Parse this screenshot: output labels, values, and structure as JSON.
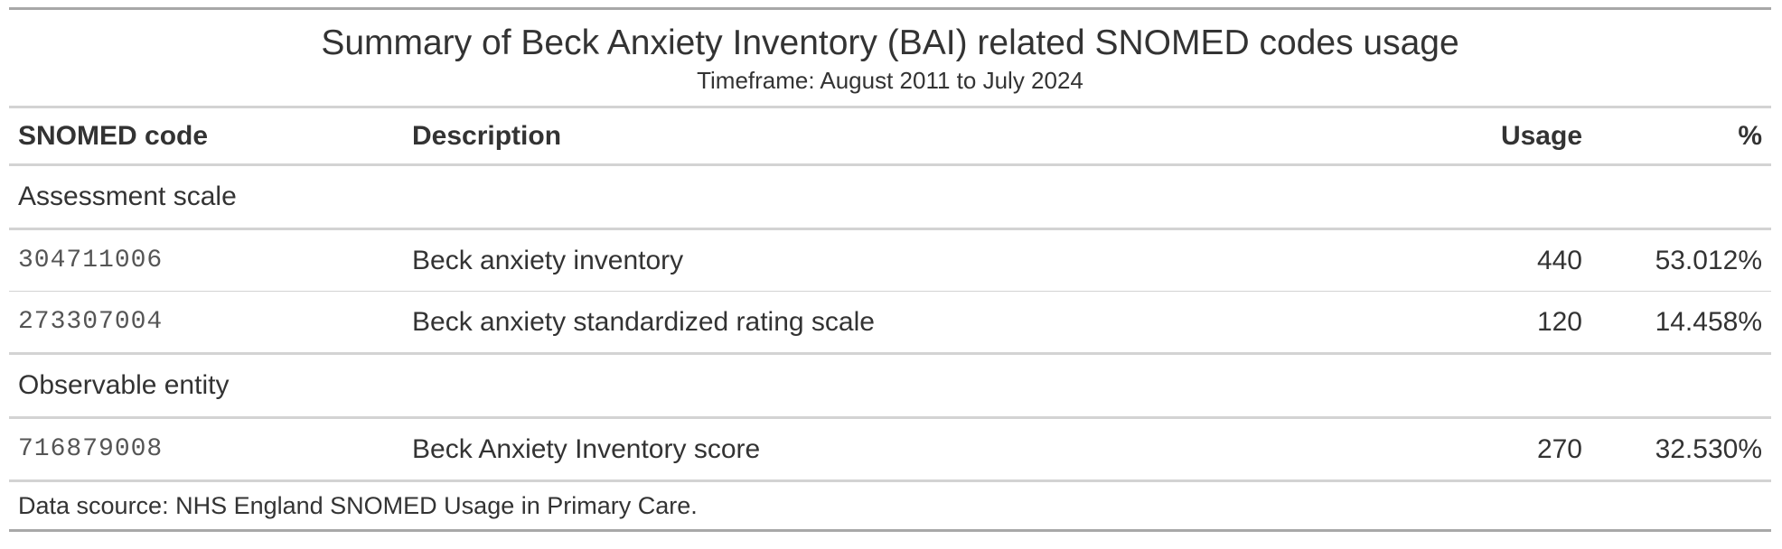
{
  "heading": {
    "title": "Summary of Beck Anxiety Inventory (BAI) related SNOMED codes usage",
    "subtitle": "Timeframe: August 2011 to July 2024"
  },
  "columns": {
    "code": "SNOMED code",
    "description": "Description",
    "usage": "Usage",
    "percent": "%"
  },
  "groups": [
    {
      "label": "Assessment scale",
      "rows": [
        {
          "code": "304711006",
          "description": "Beck anxiety inventory",
          "usage": "440",
          "percent": "53.012%"
        },
        {
          "code": "273307004",
          "description": "Beck anxiety standardized rating scale",
          "usage": "120",
          "percent": "14.458%"
        }
      ]
    },
    {
      "label": "Observable entity",
      "rows": [
        {
          "code": "716879008",
          "description": "Beck Anxiety Inventory score",
          "usage": "270",
          "percent": "32.530%"
        }
      ]
    }
  ],
  "footer": {
    "source": "Data scource: NHS England SNOMED Usage in Primary Care."
  },
  "colors": {
    "text": "#333333",
    "rule_strong": "#a8a8a8",
    "rule_light": "#d3d3d3"
  }
}
